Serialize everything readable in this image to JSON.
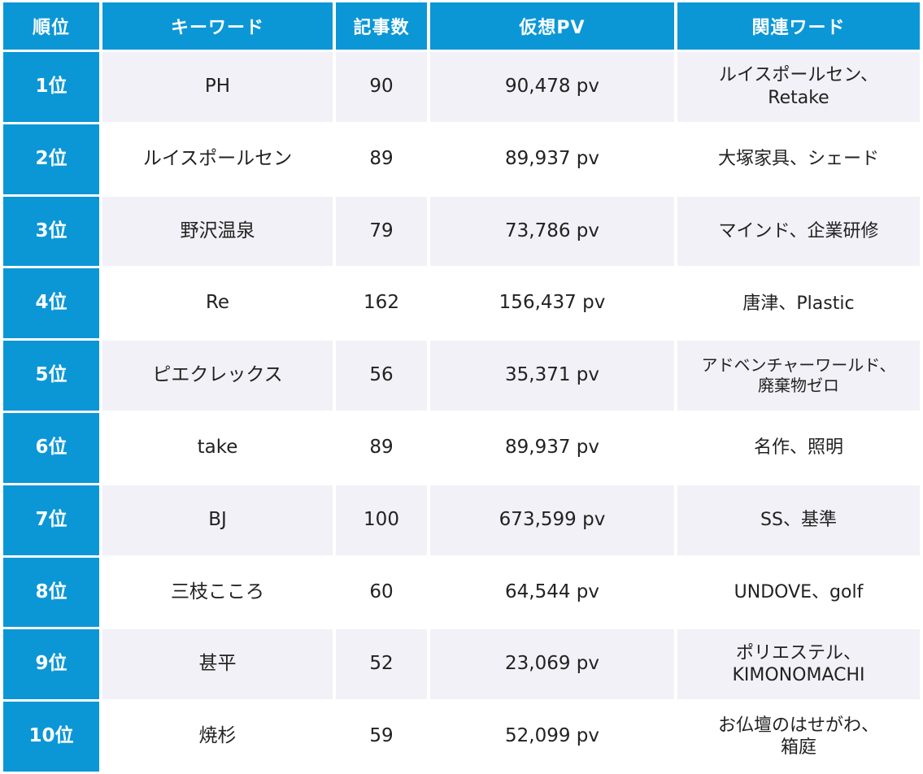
{
  "headers": {
    "rank": "順位",
    "keyword": "キーワード",
    "articles": "記事数",
    "pv": "仮想PV",
    "related": "関連ワード"
  },
  "rows": [
    {
      "rank": "1位",
      "keyword": "PH",
      "articles": "90",
      "pv": "90,478 pv",
      "related": [
        "ルイスポールセン、",
        "Retake"
      ]
    },
    {
      "rank": "2位",
      "keyword": "ルイスポールセン",
      "articles": "89",
      "pv": "89,937 pv",
      "related": [
        "大塚家具、シェード"
      ]
    },
    {
      "rank": "3位",
      "keyword": "野沢温泉",
      "articles": "79",
      "pv": "73,786 pv",
      "related": [
        "マインド、企業研修"
      ]
    },
    {
      "rank": "4位",
      "keyword": "Re",
      "articles": "162",
      "pv": "156,437 pv",
      "related": [
        "唐津、Plastic"
      ]
    },
    {
      "rank": "5位",
      "keyword": "ピエクレックス",
      "articles": "56",
      "pv": "35,371 pv",
      "related": [
        "アドベンチャーワールド、",
        "廃棄物ゼロ"
      ]
    },
    {
      "rank": "6位",
      "keyword": "take",
      "articles": "89",
      "pv": "89,937 pv",
      "related": [
        "名作、照明"
      ]
    },
    {
      "rank": "7位",
      "keyword": "BJ",
      "articles": "100",
      "pv": "673,599 pv",
      "related": [
        "SS、基準"
      ]
    },
    {
      "rank": "8位",
      "keyword": "三枝こころ",
      "articles": "60",
      "pv": "64,544 pv",
      "related": [
        "UNDOVE、golf"
      ]
    },
    {
      "rank": "9位",
      "keyword": "甚平",
      "articles": "52",
      "pv": "23,069 pv",
      "related": [
        "ポリエステル、",
        "KIMONOMACHI"
      ]
    },
    {
      "rank": "10位",
      "keyword": "焼杉",
      "articles": "59",
      "pv": "52,099 pv",
      "related": [
        "お仏壇のはせがわ、",
        "箱庭"
      ]
    }
  ],
  "colors": {
    "header_bg": "#0b97d6",
    "row_alt_bg": "#f1f1f7",
    "text": "#222222"
  }
}
